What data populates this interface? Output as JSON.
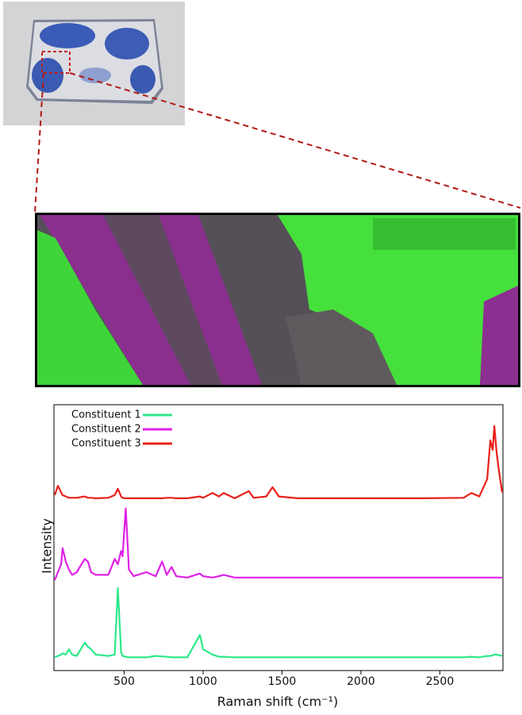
{
  "chart_data": {
    "type": "line",
    "x": [
      60,
      80,
      100,
      110,
      130,
      150,
      170,
      200,
      250,
      270,
      290,
      320,
      400,
      440,
      460,
      480,
      490,
      510,
      530,
      560,
      640,
      700,
      740,
      770,
      800,
      830,
      900,
      980,
      1000,
      1060,
      1100,
      1130,
      1200,
      1290,
      1320,
      1400,
      1440,
      1480,
      1600,
      2000,
      2400,
      2650,
      2700,
      2750,
      2800,
      2820,
      2835,
      2845,
      2860,
      2875,
      2895
    ],
    "series": [
      {
        "name": "Constituent 1",
        "color": "#2de889",
        "values": [
          5,
          5.5,
          6,
          6.5,
          6,
          8,
          6,
          5.5,
          10.5,
          9,
          8,
          6,
          5.5,
          6,
          31,
          7,
          5.5,
          5.2,
          5,
          5,
          5,
          5.5,
          5.3,
          5.2,
          5,
          5,
          5,
          13.4,
          8,
          6,
          5.2,
          5.2,
          5,
          5,
          5,
          5,
          5,
          5,
          5,
          5,
          5,
          5,
          5.2,
          5,
          5.5,
          5.5,
          5.8,
          6,
          6,
          5.8,
          5.5
        ]
      },
      {
        "name": "Constituent 2",
        "color": "#e021e8",
        "values": [
          34,
          37,
          40,
          46,
          41,
          38,
          36,
          37,
          42,
          41,
          37,
          36,
          36,
          42,
          40,
          45,
          43,
          61,
          38,
          35.5,
          37,
          35.5,
          41,
          36,
          39,
          35.5,
          35,
          36.5,
          35.5,
          35,
          35.5,
          36,
          35,
          35,
          35,
          35,
          35,
          35,
          35,
          35,
          35,
          35,
          35,
          35,
          35,
          35,
          35,
          35,
          35,
          35,
          35
        ]
      },
      {
        "name": "Constituent 3",
        "color": "#e8201a",
        "values": [
          66,
          69.5,
          67,
          66,
          65.5,
          65,
          65,
          65,
          65.5,
          65,
          65,
          64.8,
          65,
          66,
          68.4,
          65.5,
          65,
          64.8,
          64.8,
          64.8,
          64.8,
          64.8,
          64.8,
          65,
          65,
          64.8,
          64.8,
          65.5,
          65,
          66.8,
          65.5,
          66.8,
          64.8,
          67.5,
          65,
          65.5,
          69,
          65.5,
          64.8,
          64.8,
          64.8,
          65,
          66.8,
          65.5,
          72,
          86.6,
          83,
          92,
          82,
          75,
          67
        ]
      }
    ],
    "xlim": [
      55,
      2900
    ],
    "ylim": [
      0,
      100
    ],
    "xticks": [
      500,
      1000,
      1500,
      2000,
      2500
    ],
    "xlabel": "Raman shift (cm⁻¹)",
    "ylabel": "Intensity",
    "legend": "upper left"
  }
}
